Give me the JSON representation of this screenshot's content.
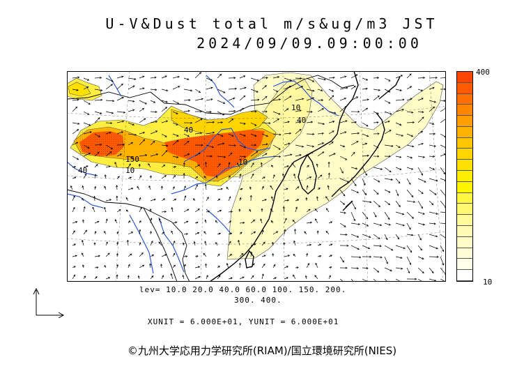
{
  "title": {
    "line1": "U-V&Dust total m/s&ug/m3 JST",
    "line2": "2024/09/09.09:00:00"
  },
  "colorbar": {
    "max_label": "400",
    "min_label": "10",
    "colors_top_to_bottom": [
      "#ff4500",
      "#ff5a00",
      "#ff7000",
      "#ff8700",
      "#ff9e00",
      "#ffb300",
      "#ffc500",
      "#ffd500",
      "#ffe100",
      "#ffee00",
      "#fff400",
      "#fff640",
      "#fff870",
      "#fffa98",
      "#fffbb4",
      "#fffcc8",
      "#fffdd8",
      "#fffee8",
      "#ffffff"
    ]
  },
  "contour_labels": [
    "40",
    "150",
    "10",
    "10",
    "40",
    "10",
    "40"
  ],
  "footer": {
    "levels_line1": "lev= 10.0 20.0 40.0 60.0 100. 150. 200.",
    "levels_line2": "300. 400.",
    "units_line": "XUNIT = 6.000E+01, YUNIT = 6.000E+01"
  },
  "copyright": "©九州大学応用力学研究所(RIAM)/国立環境研究所(NIES)",
  "icons": {
    "reference_arrow": "reference-vector-axes-icon"
  }
}
